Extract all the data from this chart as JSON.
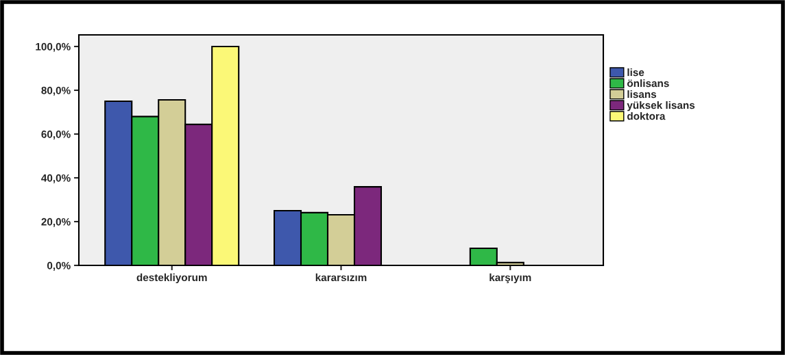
{
  "chart_data": {
    "type": "bar",
    "categories": [
      "destekliyorum",
      "kararsızım",
      "karşıyım"
    ],
    "series": [
      {
        "name": "lise",
        "color": "#3e58ac",
        "values": [
          75,
          25,
          0
        ]
      },
      {
        "name": "önlisans",
        "color": "#2fb847",
        "values": [
          68,
          24.1,
          7.8
        ]
      },
      {
        "name": "lisans",
        "color": "#d3ce97",
        "values": [
          75.6,
          23.1,
          1.3
        ]
      },
      {
        "name": "yüksek lisans",
        "color": "#7c287c",
        "values": [
          64.4,
          35.9,
          0
        ]
      },
      {
        "name": "doktora",
        "color": "#fbf877",
        "values": [
          100,
          0,
          0
        ]
      }
    ],
    "ylim": [
      0,
      105.3
    ],
    "yticks": [
      {
        "value": 0,
        "label": "0,0%"
      },
      {
        "value": 20,
        "label": "20,0%"
      },
      {
        "value": 40,
        "label": "40,0%"
      },
      {
        "value": 60,
        "label": "60,0%"
      },
      {
        "value": 80,
        "label": "80,0%"
      },
      {
        "value": 100,
        "label": "100,0%"
      }
    ],
    "grid": false,
    "legend": "right"
  }
}
